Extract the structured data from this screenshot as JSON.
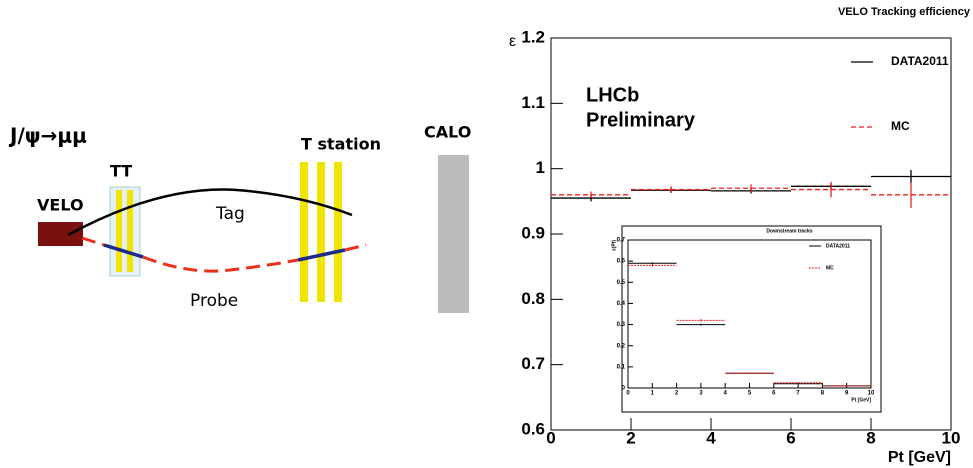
{
  "diagram": {
    "decay": "J/ψ→μμ",
    "labels": {
      "velo": "VELO",
      "tt": "TT",
      "t_station": "T station",
      "calo": "CALO",
      "tag": "Tag",
      "probe": "Probe"
    }
  },
  "chart_data": [
    {
      "type": "histogram",
      "title": "VELO Tracking efficiency",
      "x_label": "Pt [GeV]",
      "y_label": "ε",
      "annotations": [
        "LHCb",
        "Preliminary"
      ],
      "bins": [
        0,
        2,
        4,
        6,
        8,
        10
      ],
      "xlim": [
        0,
        10
      ],
      "xticks": [
        0,
        2,
        4,
        6,
        8,
        10
      ],
      "ylim": [
        0.6,
        1.2
      ],
      "yticks": [
        0.6,
        0.7,
        0.8,
        0.9,
        1,
        1.1,
        1.2
      ],
      "legend": "top-right",
      "series": [
        {
          "name": "DATA2011",
          "color": "#000000",
          "line_style": "solid",
          "values": [
            0.955,
            0.967,
            0.966,
            0.973,
            0.988
          ],
          "errors": [
            0.005,
            0.004,
            0.004,
            0.004,
            0.01
          ]
        },
        {
          "name": "MC",
          "color": "#e8221c",
          "line_style": "dashed",
          "values": [
            0.96,
            0.968,
            0.97,
            0.968,
            0.96
          ],
          "errors": [
            0.005,
            0.005,
            0.006,
            0.012,
            0.02
          ]
        }
      ]
    },
    {
      "type": "histogram",
      "title": "Downstream tracks",
      "x_label": "Pt  [GeV]",
      "y_label": "ε(Pt)",
      "bins": [
        0,
        2,
        4,
        6,
        8,
        10
      ],
      "xlim": [
        0,
        10
      ],
      "xticks": [
        0,
        1,
        2,
        3,
        4,
        5,
        6,
        7,
        8,
        9,
        10
      ],
      "ylim": [
        0,
        0.7
      ],
      "yticks": [
        0,
        0.1,
        0.2,
        0.3,
        0.4,
        0.5,
        0.6,
        0.7
      ],
      "legend": "top-right",
      "series": [
        {
          "name": "DATA2011",
          "color": "#000000",
          "line_style": "solid",
          "values": [
            0.59,
            0.3,
            0.07,
            0.02,
            0.01
          ],
          "errors": [
            0.005,
            0.005,
            0.003,
            0.002,
            0.002
          ]
        },
        {
          "name": "MC",
          "color": "#e8221c",
          "line_style": "dashed",
          "values": [
            0.58,
            0.32,
            0.07,
            0.025,
            0.01
          ],
          "errors": [
            0.008,
            0.006,
            0.003,
            0.002,
            0.002
          ]
        }
      ]
    }
  ]
}
